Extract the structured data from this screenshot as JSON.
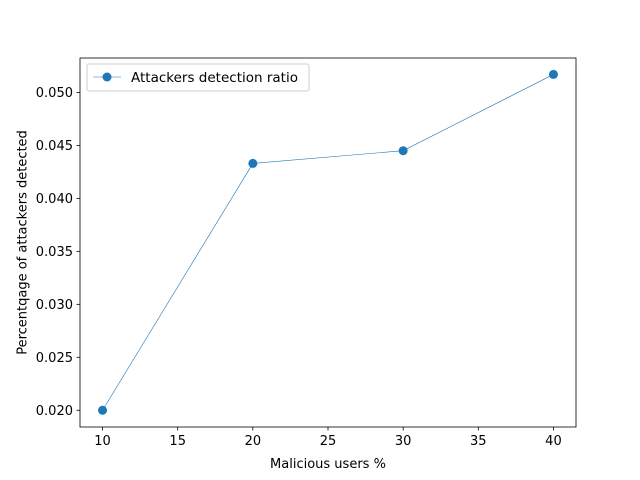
{
  "chart_data": {
    "type": "line",
    "title": "",
    "xlabel": "Malicious users %",
    "ylabel": "Percentqage of attackers detected",
    "x": [
      10,
      20,
      30,
      40
    ],
    "series": [
      {
        "name": "Attackers detection ratio",
        "values": [
          0.02,
          0.0433,
          0.0445,
          0.0517
        ]
      }
    ],
    "xlim": [
      8.5,
      41.5
    ],
    "ylim": [
      0.01842,
      0.05325
    ],
    "xticks": [
      10,
      15,
      20,
      25,
      30,
      35,
      40
    ],
    "xtick_labels": [
      "10",
      "15",
      "20",
      "25",
      "30",
      "35",
      "40"
    ],
    "yticks": [
      0.02,
      0.025,
      0.03,
      0.035,
      0.04,
      0.045,
      0.05
    ],
    "ytick_labels": [
      "0.020",
      "0.025",
      "0.030",
      "0.035",
      "0.040",
      "0.045",
      "0.050"
    ],
    "grid": false,
    "legend_position": "upper-left",
    "colors": {
      "series": "#1f77b4",
      "axes": "#000000",
      "background": "#ffffff"
    },
    "marker": "circle"
  }
}
